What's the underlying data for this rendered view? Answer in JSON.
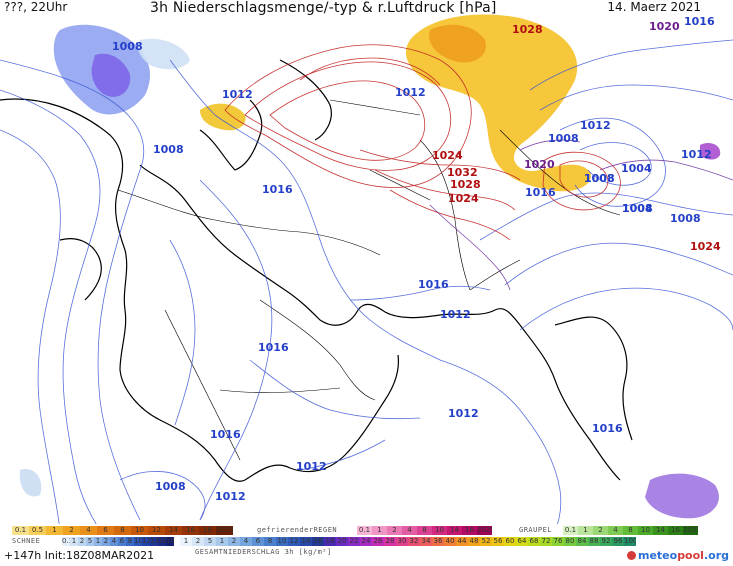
{
  "header": {
    "left": "???, 22Uhr",
    "title": "3h Niederschlagsmenge/-typ & r.Luftdruck [hPa]",
    "date": "14. Maerz 2021"
  },
  "footer": {
    "forecast": "+147h Init:18Z08MAR2021",
    "logo_a": "meteo",
    "logo_b": "pool",
    "logo_c": ".org"
  },
  "isobar_labels": [
    {
      "text": "1008",
      "color": "#2440c8"
    },
    {
      "text": "1012",
      "color": "#2440c8"
    },
    {
      "text": "1008",
      "color": "#2440c8"
    },
    {
      "text": "1016",
      "color": "#2440c8"
    },
    {
      "text": "1016",
      "color": "#2440c8"
    },
    {
      "text": "1016",
      "color": "#2440c8"
    },
    {
      "text": "1016",
      "color": "#2440c8"
    },
    {
      "text": "1012",
      "color": "#2440c8"
    },
    {
      "text": "1012",
      "color": "#2440c8"
    },
    {
      "text": "1012",
      "color": "#2440c8"
    },
    {
      "text": "1012",
      "color": "#2440c8"
    },
    {
      "text": "1008",
      "color": "#2440c8"
    },
    {
      "text": "1016",
      "color": "#2440c8"
    },
    {
      "text": "1012",
      "color": "#2440c8"
    },
    {
      "text": "1028",
      "color": "#b01010"
    },
    {
      "text": "1024",
      "color": "#b01010"
    },
    {
      "text": "1032",
      "color": "#b01010"
    },
    {
      "text": "1028",
      "color": "#b01010"
    },
    {
      "text": "1024",
      "color": "#b01010"
    },
    {
      "text": "1020",
      "color": "#6a1f8a"
    },
    {
      "text": "1016",
      "color": "#2440c8"
    },
    {
      "text": "1008",
      "color": "#2440c8"
    },
    {
      "text": "1012",
      "color": "#2440c8"
    },
    {
      "text": "1008",
      "color": "#2440c8"
    },
    {
      "text": "1004",
      "color": "#2440c8"
    },
    {
      "text": "1008",
      "color": "#2440c8"
    },
    {
      "text": "1024",
      "color": "#b01010"
    },
    {
      "text": "1020",
      "color": "#6a1f8a"
    },
    {
      "text": "1016",
      "color": "#2440c8"
    },
    {
      "text": "1012",
      "color": "#2440c8"
    },
    {
      "text": "1004",
      "color": "#2440c8"
    },
    {
      "text": "1008",
      "color": "#2440c8"
    },
    {
      "text": "1008",
      "color": "#2440c8"
    }
  ],
  "legend": {
    "rain_values": [
      "0.1",
      "0.5",
      "1",
      "2",
      "4",
      "6",
      "8",
      "10",
      "12",
      "14",
      "16",
      "18",
      "2025+"
    ],
    "rain_colors": [
      "#f7e08a",
      "#f5cf5a",
      "#f2b733",
      "#eea220",
      "#e8901a",
      "#e07a14",
      "#d4690f",
      "#c7580c",
      "#b84a0a",
      "#a63d08",
      "#933206",
      "#7e2804",
      "#6a1e02"
    ],
    "freezing_label": "gefrierenderREGEN",
    "freezing_values": [
      "0.1",
      "1",
      "2",
      "4",
      "8",
      "10",
      "14",
      "16",
      "2025+"
    ],
    "freezing_colors": [
      "#f6b5d6",
      "#f097c6",
      "#ea7ab5",
      "#e35da4",
      "#db4293",
      "#d22982",
      "#c41772",
      "#b20b63",
      "#9d0254"
    ],
    "graupel_label": "GRAUPEL",
    "graupel_values": [
      "0.1",
      "1",
      "2",
      "4",
      "8",
      "10",
      "14",
      "16",
      "2025+"
    ],
    "graupel_colors": [
      "#d7f0c0",
      "#b9e49a",
      "#9bd875",
      "#7dcb52",
      "#62bc37",
      "#4ca92a",
      "#3a941f",
      "#2c7e17",
      "#1f6810"
    ],
    "snow_label": "SCHNEE",
    "snow_values": [
      "0.1",
      "1",
      "2",
      "5",
      "1",
      "2",
      "4",
      "6",
      "8",
      "10",
      "12",
      "14",
      "16",
      "18"
    ],
    "snow_colors": [
      "#e6f0fa",
      "#d2e4f6",
      "#bcd5f1",
      "#a6c6ec",
      "#8fb5e6",
      "#78a3df",
      "#6290d7",
      "#4d7dce",
      "#3a69c4",
      "#2b56b8",
      "#2244a9",
      "#1c3597",
      "#182a83",
      "#131f6e"
    ],
    "total_label": "GESAMTNIEDERSCHLAG 3h [kg/m²]",
    "total_values": [
      "1",
      "2",
      "5",
      "1",
      "2",
      "4",
      "6",
      "8",
      "10",
      "12",
      "14",
      "16",
      "18",
      "20",
      "22",
      "24",
      "26",
      "28",
      "30",
      "32",
      "34",
      "36",
      "40",
      "44",
      "48",
      "52",
      "56",
      "60",
      "64",
      "68",
      "72",
      "76",
      "80",
      "84",
      "88",
      "92",
      "96",
      "100"
    ],
    "total_colors": [
      "#eaf2fb",
      "#d6e6f7",
      "#c0d8f2",
      "#a8c8ec",
      "#8fb7e5",
      "#76a5dd",
      "#5e92d4",
      "#4a80cb",
      "#3a6dc1",
      "#2e5bb5",
      "#2748a6",
      "#233a94",
      "#4a2bb0",
      "#6a2bc0",
      "#8a2cc6",
      "#a72cc3",
      "#c22cb6",
      "#d634a3",
      "#e1408c",
      "#e84f74",
      "#ec5e5d",
      "#ef6e47",
      "#f17f34",
      "#f29125",
      "#f2a31c",
      "#f0b518",
      "#ecc616",
      "#e4d515",
      "#d3dc18",
      "#bddc1e",
      "#a5d827",
      "#8dd233",
      "#75ca3f",
      "#5ec04a",
      "#4ab454",
      "#39a75c",
      "#2b9962",
      "#1f8a66"
    ]
  }
}
